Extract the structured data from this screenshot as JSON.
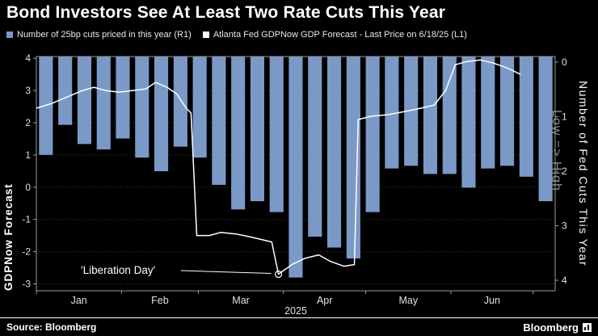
{
  "title": "Bond Investors See At Least Two Rate Cuts This Year",
  "legend": [
    {
      "label": "Number of 25bp cuts priced in this year (R1)",
      "color": "#7b99c7",
      "type": "bar"
    },
    {
      "label": "Atlanta Fed GDPNow GDP Forecast - Last Price on 6/18/25 (L1)",
      "color": "#ffffff",
      "type": "line"
    }
  ],
  "axes": {
    "left": {
      "title": "GDPNow Forecast"
    },
    "right": {
      "title": "Number of Fed Cuts This Year",
      "subtitle": "Low => High"
    }
  },
  "footer": {
    "source": "Source: Bloomberg",
    "logo": "Bloomberg"
  },
  "chart_data": {
    "type": "bar+line",
    "x_unit": "weekly, Jan through mid-Jun 2025",
    "categories_months": [
      "Jan",
      "Feb",
      "Mar",
      "Apr",
      "May",
      "Jun"
    ],
    "year": "2025",
    "background": "#000000",
    "grid": "dotted horizontal",
    "bar_series": {
      "name": "Number of 25bp cuts priced in this year",
      "axis": "R1",
      "color": "#7b99c7",
      "values": [
        1.7,
        1.15,
        1.5,
        1.6,
        1.4,
        1.75,
        2.0,
        1.55,
        1.75,
        2.25,
        2.7,
        2.55,
        2.75,
        3.95,
        3.2,
        3.4,
        3.6,
        2.75,
        1.95,
        1.9,
        2.05,
        2.05,
        2.3,
        1.95,
        1.9,
        2.1,
        2.55
      ]
    },
    "line_series": {
      "name": "Atlanta Fed GDPNow GDP Forecast - Last Price on 6/18/25",
      "axis": "L1",
      "color": "#ffffff",
      "points": [
        [
          0,
          2.45
        ],
        [
          0.8,
          2.6
        ],
        [
          1.6,
          2.8
        ],
        [
          2.4,
          3.0
        ],
        [
          3.0,
          3.1
        ],
        [
          3.6,
          3.0
        ],
        [
          4.3,
          2.95
        ],
        [
          5.0,
          3.0
        ],
        [
          5.7,
          3.05
        ],
        [
          6.2,
          3.25
        ],
        [
          6.8,
          3.1
        ],
        [
          7.3,
          2.9
        ],
        [
          7.8,
          2.45
        ],
        [
          8.05,
          2.3
        ],
        [
          8.35,
          -1.5
        ],
        [
          9.0,
          -1.5
        ],
        [
          9.6,
          -1.4
        ],
        [
          10.4,
          -1.45
        ],
        [
          11.2,
          -1.55
        ],
        [
          11.9,
          -1.65
        ],
        [
          12.25,
          -1.7
        ],
        [
          12.6,
          -2.7
        ],
        [
          13.3,
          -2.4
        ],
        [
          14.0,
          -2.2
        ],
        [
          14.7,
          -2.1
        ],
        [
          15.3,
          -2.3
        ],
        [
          16.0,
          -2.45
        ],
        [
          16.55,
          -2.4
        ],
        [
          16.75,
          2.1
        ],
        [
          17.4,
          2.2
        ],
        [
          18.3,
          2.25
        ],
        [
          19.2,
          2.35
        ],
        [
          20.0,
          2.45
        ],
        [
          20.7,
          2.55
        ],
        [
          21.3,
          3.0
        ],
        [
          21.8,
          3.8
        ],
        [
          22.4,
          3.9
        ],
        [
          23.1,
          3.95
        ],
        [
          23.8,
          3.85
        ],
        [
          24.5,
          3.7
        ],
        [
          25.2,
          3.5
        ]
      ]
    },
    "left_axis": {
      "label": "GDPNow Forecast",
      "ticks": [
        4,
        3,
        2,
        1,
        0,
        -1,
        -2,
        -3
      ],
      "min": -3.25,
      "max": 4.03
    },
    "right_axis": {
      "label": "Number of Fed Cuts This Year",
      "direction": "Low => High",
      "ticks": [
        0,
        1,
        2,
        3,
        4
      ],
      "inverted": true
    },
    "annotation": {
      "text": "'Liberation Day'",
      "points_to": [
        12.6,
        -2.7
      ]
    }
  }
}
